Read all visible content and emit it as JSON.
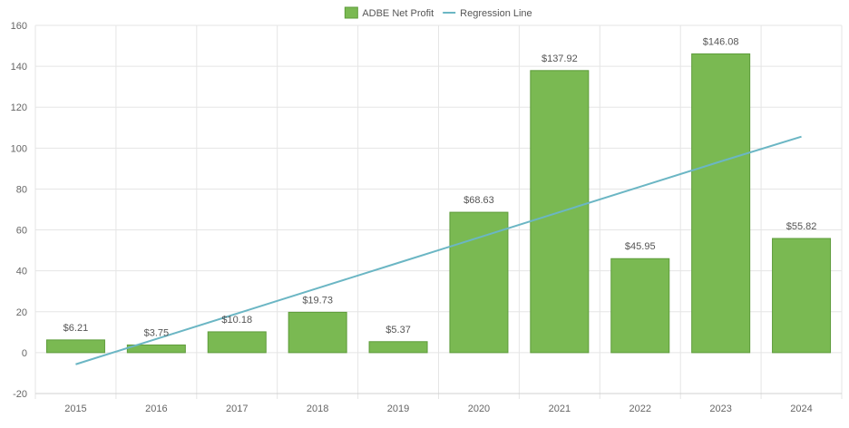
{
  "colors": {
    "bar_fill": "#7ab952",
    "bar_stroke": "#5e9c3b",
    "regression_line": "#6bb6c4",
    "grid": "#e5e5e5",
    "axis_text": "#666666"
  },
  "legend": {
    "items": [
      {
        "label": "ADBE Net Profit",
        "symbol": "box",
        "color": "#7ab952"
      },
      {
        "label": "Regression Line",
        "symbol": "line",
        "color": "#6bb6c4"
      }
    ],
    "placement": "top-center"
  },
  "chart_data": {
    "type": "bar",
    "categories": [
      "2015",
      "2016",
      "2017",
      "2018",
      "2019",
      "2020",
      "2021",
      "2022",
      "2023",
      "2024"
    ],
    "series": [
      {
        "name": "ADBE Net Profit",
        "type": "bar",
        "values": [
          6.21,
          3.75,
          10.18,
          19.73,
          5.37,
          68.63,
          137.92,
          45.95,
          146.08,
          55.82
        ],
        "labels": [
          "$6.21",
          "$3.75",
          "$10.18",
          "$19.73",
          "$5.37",
          "$68.63",
          "$137.92",
          "$45.95",
          "$146.08",
          "$55.82"
        ]
      },
      {
        "name": "Regression Line",
        "type": "line",
        "values": [
          -5.7,
          6.7,
          19.1,
          31.5,
          43.9,
          56.3,
          68.7,
          81.1,
          93.5,
          105.6
        ]
      }
    ],
    "ylim": [
      -20,
      160
    ],
    "yticks": [
      "-20",
      "0",
      "20",
      "40",
      "60",
      "80",
      "100",
      "120",
      "140",
      "160"
    ],
    "grid": true,
    "title": "",
    "xlabel": "",
    "ylabel": ""
  }
}
